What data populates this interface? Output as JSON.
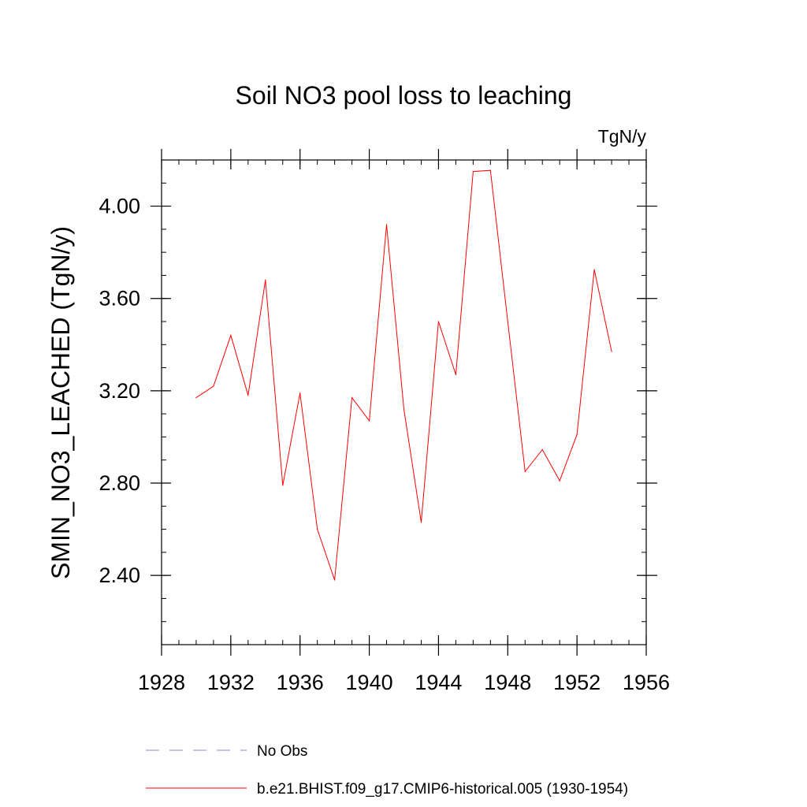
{
  "chart_data": {
    "type": "line",
    "title": "Soil NO3 pool loss to leaching",
    "units": "TgN/y",
    "ylabel": "SMIN_NO3_LEACHED  (TgN/y)",
    "xlabel": "",
    "xlim": [
      1928,
      1956
    ],
    "ylim": [
      2.1,
      4.2
    ],
    "x_ticks": [
      1928,
      1932,
      1936,
      1940,
      1944,
      1948,
      1952,
      1956
    ],
    "y_ticks": [
      2.4,
      2.8,
      3.2,
      3.6,
      4.0
    ],
    "y_tick_labels": [
      "2.40",
      "2.80",
      "3.20",
      "3.60",
      "4.00"
    ],
    "x_minor_step": 1,
    "y_minor_step": 0.1,
    "series": [
      {
        "name": "b.e21.BHIST.f09_g17.CMIP6-historical.005 (1930-1954)",
        "color": "#ff0000",
        "style": "solid",
        "x": [
          1930,
          1931,
          1932,
          1933,
          1934,
          1935,
          1936,
          1937,
          1938,
          1939,
          1940,
          1941,
          1942,
          1943,
          1944,
          1945,
          1946,
          1947,
          1948,
          1949,
          1950,
          1951,
          1952,
          1953,
          1954
        ],
        "values": [
          3.17,
          3.22,
          3.44,
          3.18,
          3.68,
          2.79,
          3.19,
          2.6,
          2.38,
          3.17,
          3.07,
          3.92,
          3.12,
          2.63,
          3.5,
          3.27,
          4.15,
          4.155,
          3.5,
          2.85,
          2.945,
          2.81,
          3.01,
          3.725,
          3.37
        ]
      }
    ],
    "legend": [
      {
        "label": "No Obs",
        "color": "#8888cc",
        "style": "dashed"
      },
      {
        "label": "b.e21.BHIST.f09_g17.CMIP6-historical.005 (1930-1954)",
        "color": "#ff0000",
        "style": "solid"
      }
    ]
  }
}
